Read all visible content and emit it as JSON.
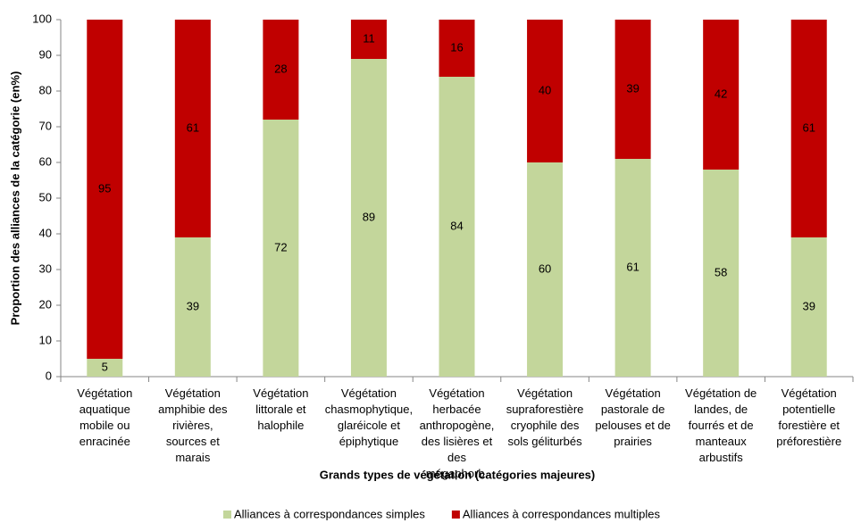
{
  "chart_data": {
    "type": "stacked_bar",
    "x_label": "Grands types de végétation (catégories majeures)",
    "y_label": "Proportion des alliances de la catégorie (en%)",
    "categories": [
      "Végétation aquatique mobile ou enracinée",
      "Végétation amphibie des rivières, sources et marais",
      "Végétation littorale et halophile",
      "Végétation chasmophytique, glaréicole et épiphytique",
      "Végétation herbacée anthropogène, des lisières et des mégaphorb.",
      "Végétation supraforestière cryophile des sols géliturbés",
      "Végétation pastorale de pelouses et de prairies",
      "Végétation de landes, de fourrés et de manteaux arbustifs",
      "Végétation potentielle forestière et préforestière"
    ],
    "series": [
      {
        "name": "Alliances à correspondances simples",
        "color": "#c3d69b",
        "values": [
          5,
          39,
          72,
          89,
          84,
          60,
          61,
          58,
          39
        ]
      },
      {
        "name": "Alliances à correspondances multiples",
        "color": "#c00000",
        "values": [
          95,
          61,
          28,
          11,
          16,
          40,
          39,
          42,
          61
        ]
      }
    ],
    "ylim": [
      0,
      100
    ],
    "yticks": [
      0,
      10,
      20,
      30,
      40,
      50,
      60,
      70,
      80,
      90,
      100
    ],
    "grid": false,
    "legend": "bottom"
  }
}
